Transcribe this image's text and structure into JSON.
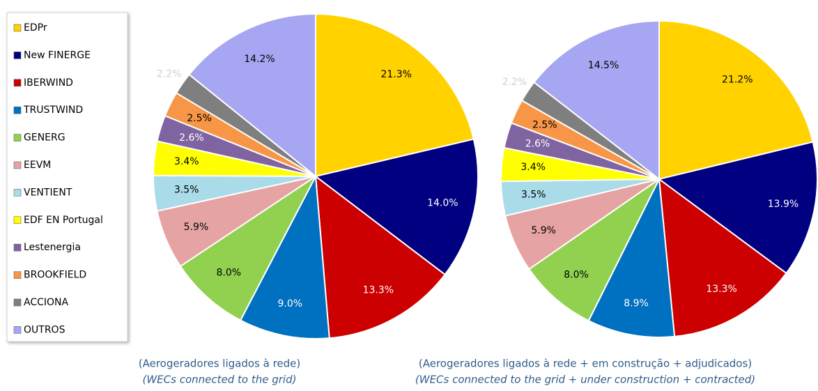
{
  "chart_data": [
    {
      "type": "pie",
      "categories": [
        "EDPr",
        "New FINERGE",
        "IBERWIND",
        "TRUSTWIND",
        "GENERG",
        "EEVM",
        "VENTIENT",
        "EDF EN Portugal",
        "Lestenergia",
        "BROOKFIELD",
        "ACCIONA",
        "OUTROS"
      ],
      "values": [
        21.3,
        14.0,
        13.3,
        9.0,
        8.0,
        5.9,
        3.5,
        3.4,
        2.6,
        2.5,
        2.2,
        14.2
      ],
      "value_labels": [
        "21.3%",
        "14.0%",
        "13.3%",
        "9.0%",
        "8.0%",
        "5.9%",
        "3.5%",
        "3.4%",
        "2.6%",
        "2.5%",
        "2.2%",
        "14.2%"
      ],
      "colors": [
        "#ffd200",
        "#000080",
        "#cc0000",
        "#0070c0",
        "#92d050",
        "#e6a3a3",
        "#a9dbe8",
        "#ffff00",
        "#8064a2",
        "#f79646",
        "#7f7f7f",
        "#a6a6f2"
      ],
      "caption": "(Aerogeradores ligados à rede)",
      "caption_en": "(WECs connected to the grid)"
    },
    {
      "type": "pie",
      "categories": [
        "EDPr",
        "New FINERGE",
        "IBERWIND",
        "TRUSTWIND",
        "GENERG",
        "EEVM",
        "VENTIENT",
        "EDF EN Portugal",
        "Lestenergia",
        "BROOKFIELD",
        "ACCIONA",
        "OUTROS"
      ],
      "values": [
        21.2,
        13.9,
        13.3,
        8.9,
        8.0,
        5.9,
        3.5,
        3.4,
        2.6,
        2.5,
        2.2,
        14.5
      ],
      "value_labels": [
        "21.2%",
        "13.9%",
        "13.3%",
        "8.9%",
        "8.0%",
        "5.9%",
        "3.5%",
        "3.4%",
        "2.6%",
        "2.5%",
        "2.2%",
        "14.5%"
      ],
      "colors": [
        "#ffd200",
        "#000080",
        "#cc0000",
        "#0070c0",
        "#92d050",
        "#e6a3a3",
        "#a9dbe8",
        "#ffff00",
        "#8064a2",
        "#f79646",
        "#7f7f7f",
        "#a6a6f2"
      ],
      "caption": "(Aerogeradores ligados à rede + em construção + adjudicados)",
      "caption_en": "(WECs connected to the grid + under construction + contracted)"
    }
  ]
}
